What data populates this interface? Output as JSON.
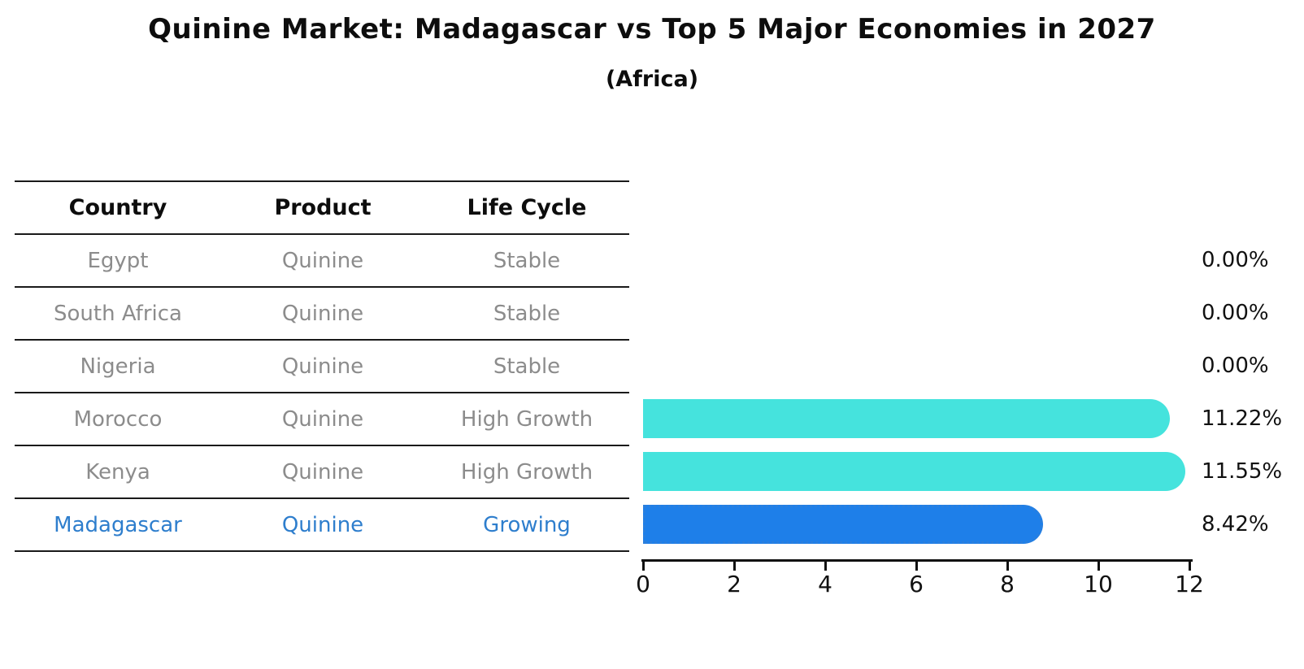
{
  "title": "Quinine Market: Madagascar vs Top 5 Major Economies in 2027",
  "subtitle": "(Africa)",
  "table": {
    "headers": [
      "Country",
      "Product",
      "Life Cycle"
    ],
    "rows": [
      {
        "country": "Egypt",
        "product": "Quinine",
        "life_cycle": "Stable"
      },
      {
        "country": "South Africa",
        "product": "Quinine",
        "life_cycle": "Stable"
      },
      {
        "country": "Nigeria",
        "product": "Quinine",
        "life_cycle": "Stable"
      },
      {
        "country": "Morocco",
        "product": "Quinine",
        "life_cycle": "High Growth"
      },
      {
        "country": "Kenya",
        "product": "Quinine",
        "life_cycle": "High Growth"
      },
      {
        "country": "Madagascar",
        "product": "Quinine",
        "life_cycle": "Growing"
      }
    ],
    "highlight_row": "Madagascar"
  },
  "chart_data": {
    "type": "bar",
    "orientation": "horizontal",
    "title": "Quinine Market: Madagascar vs Top 5 Major Economies in 2027",
    "subtitle": "(Africa)",
    "categories": [
      "Egypt",
      "South Africa",
      "Nigeria",
      "Morocco",
      "Kenya",
      "Madagascar"
    ],
    "values": [
      0,
      0,
      0,
      11.22,
      11.55,
      8.42
    ],
    "value_labels": [
      "0.00%",
      "0.00%",
      "0.00%",
      "11.22%",
      "11.55%",
      "8.42%"
    ],
    "xlim": [
      0,
      12
    ],
    "xticks": [
      "0",
      "2",
      "4",
      "6",
      "8",
      "10",
      "12"
    ],
    "grid": false,
    "legend": false,
    "highlight_category": "Madagascar",
    "bar_styles": [
      "none",
      "none",
      "none",
      "solid",
      "solid",
      "dotted-outline"
    ]
  },
  "colors": {
    "bar_default": "#45e3dd",
    "bar_highlight": "#1e7fe9",
    "highlight_text": "#2e7ecd",
    "row_text": "#8c8c8c",
    "header_text": "#0d0d0d",
    "axis_line": "#111111"
  }
}
